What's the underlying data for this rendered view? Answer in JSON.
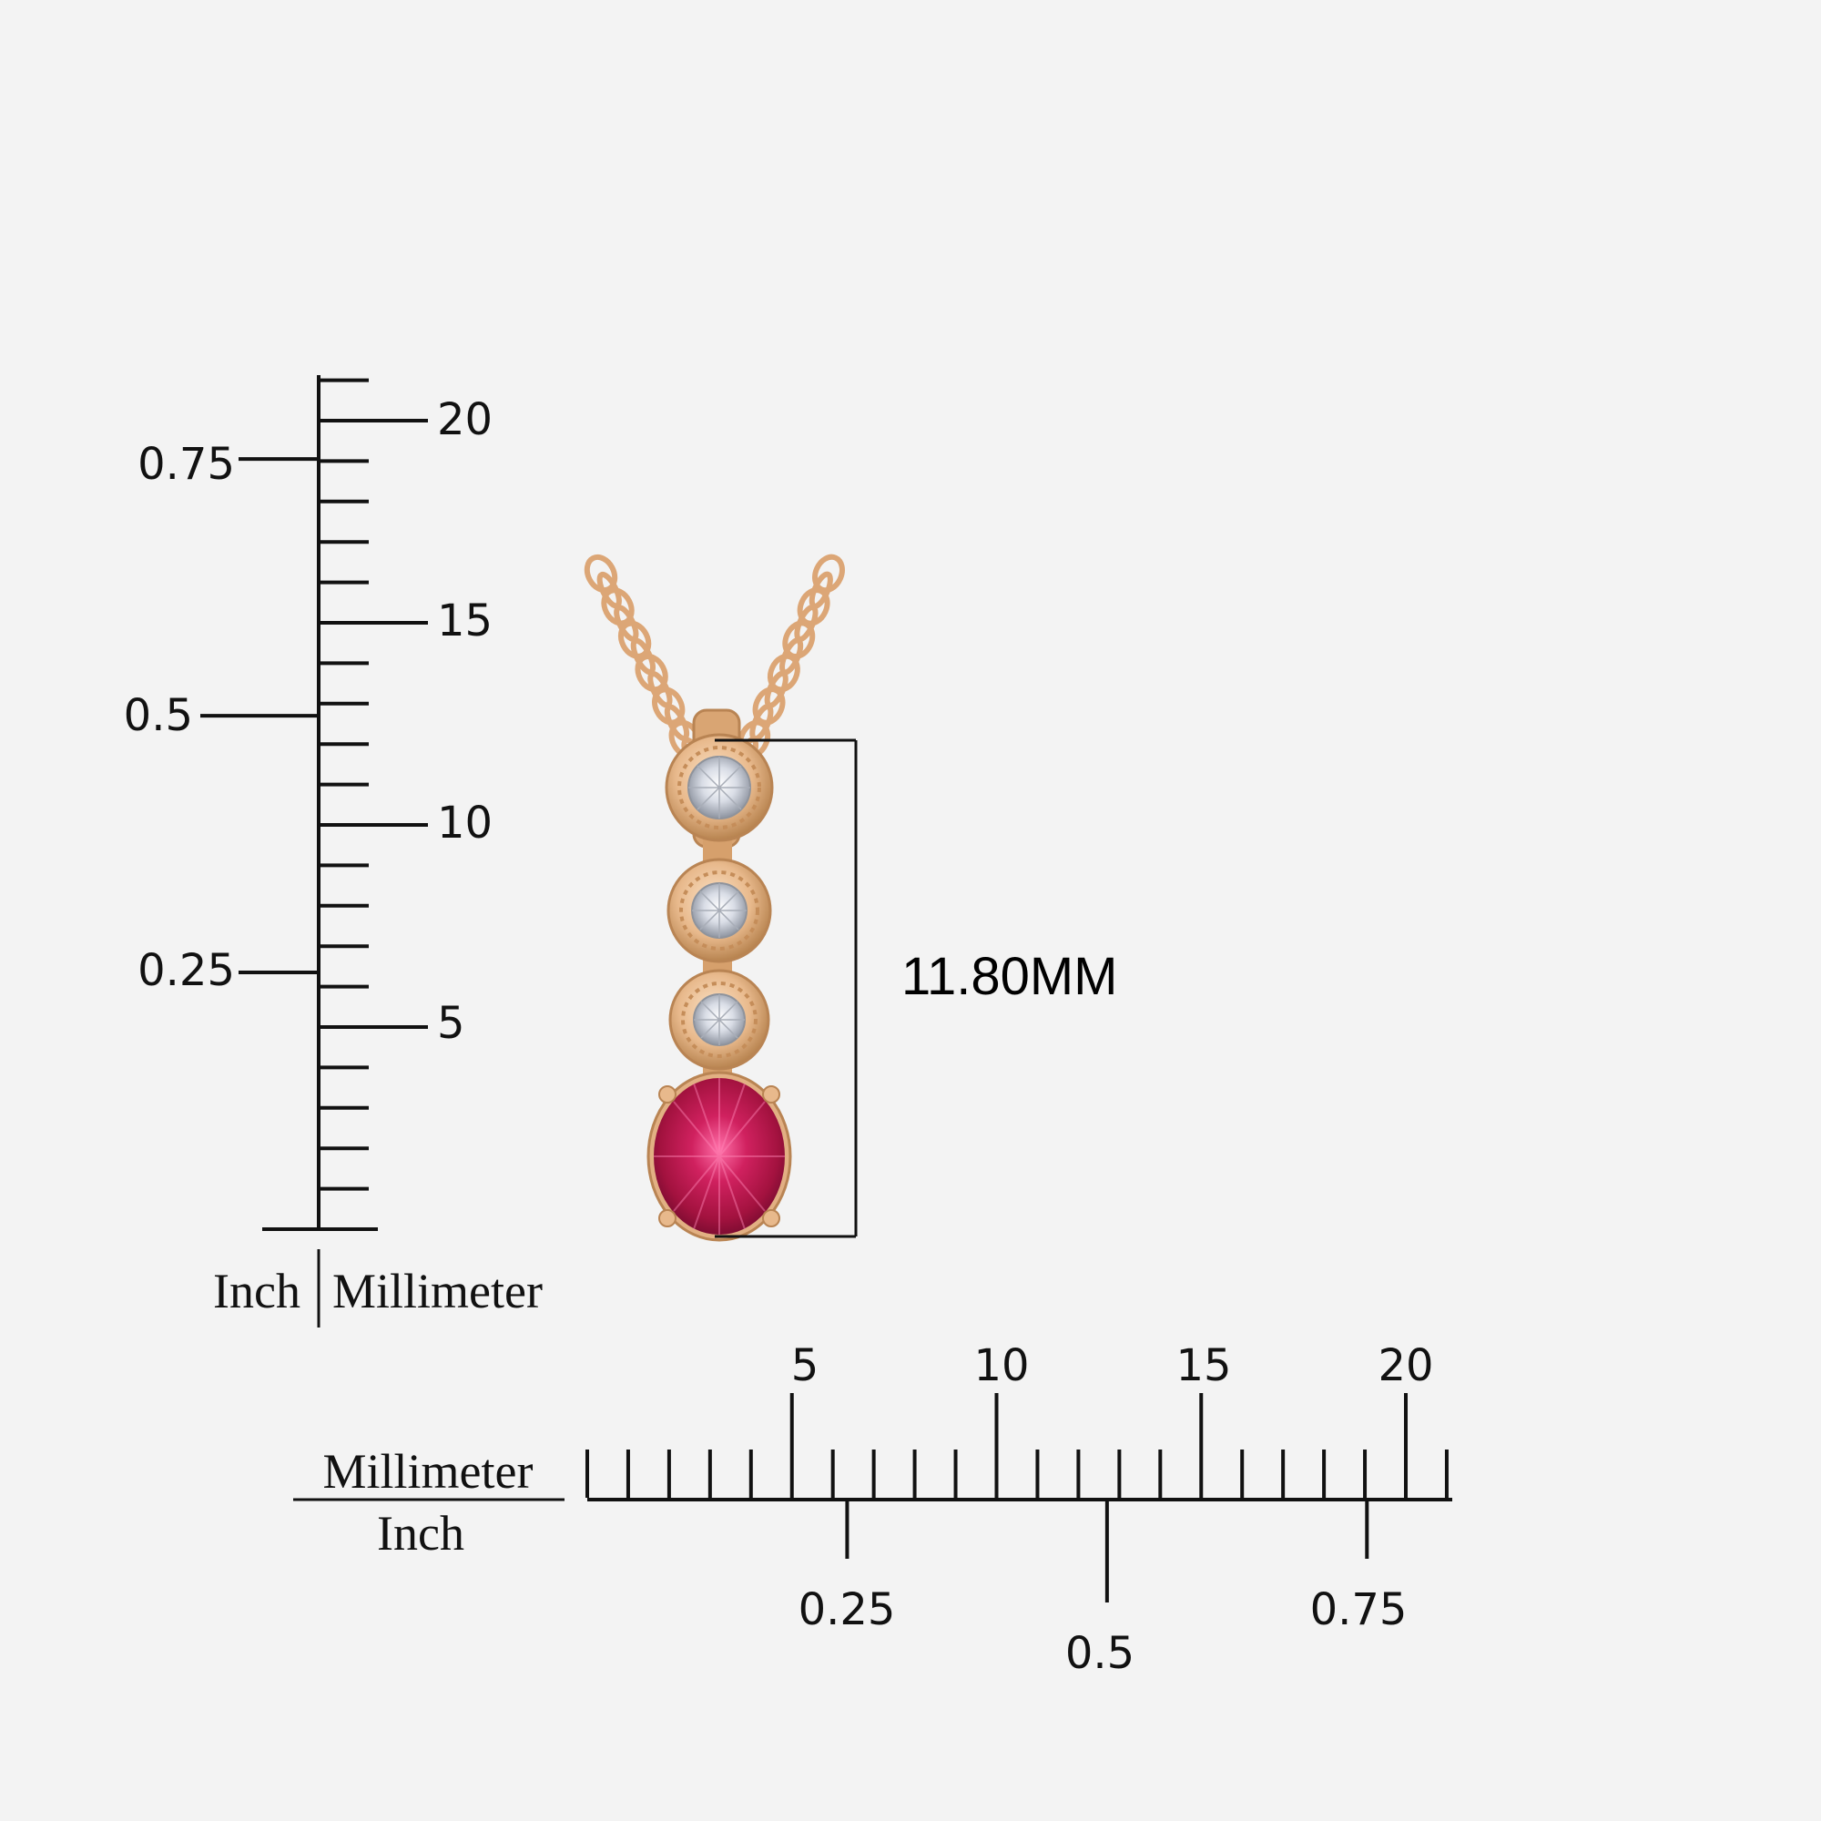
{
  "image": {
    "subject": "pendant necklace with three round white stones and an oval pink stone",
    "colors": {
      "background": "#f3f3f3",
      "metal": "#e8b98c",
      "metal_dark": "#c98f5e",
      "diamond": "#dfe3ea",
      "ruby": "#d0215f",
      "ink": "#111111"
    }
  },
  "vertical_ruler": {
    "unit_left": "Inch",
    "unit_right": "Millimeter",
    "mm_labels": [
      "20",
      "15",
      "10",
      "5"
    ],
    "inch_labels": [
      "0.75",
      "0.5",
      "0.25"
    ]
  },
  "horizontal_ruler": {
    "unit_top": "Millimeter",
    "unit_bottom": "Inch",
    "mm_labels": [
      "5",
      "10",
      "15",
      "20"
    ],
    "inch_labels": [
      "0.25",
      "0.5",
      "0.75"
    ]
  },
  "dimension": {
    "label": "11.80MM"
  }
}
